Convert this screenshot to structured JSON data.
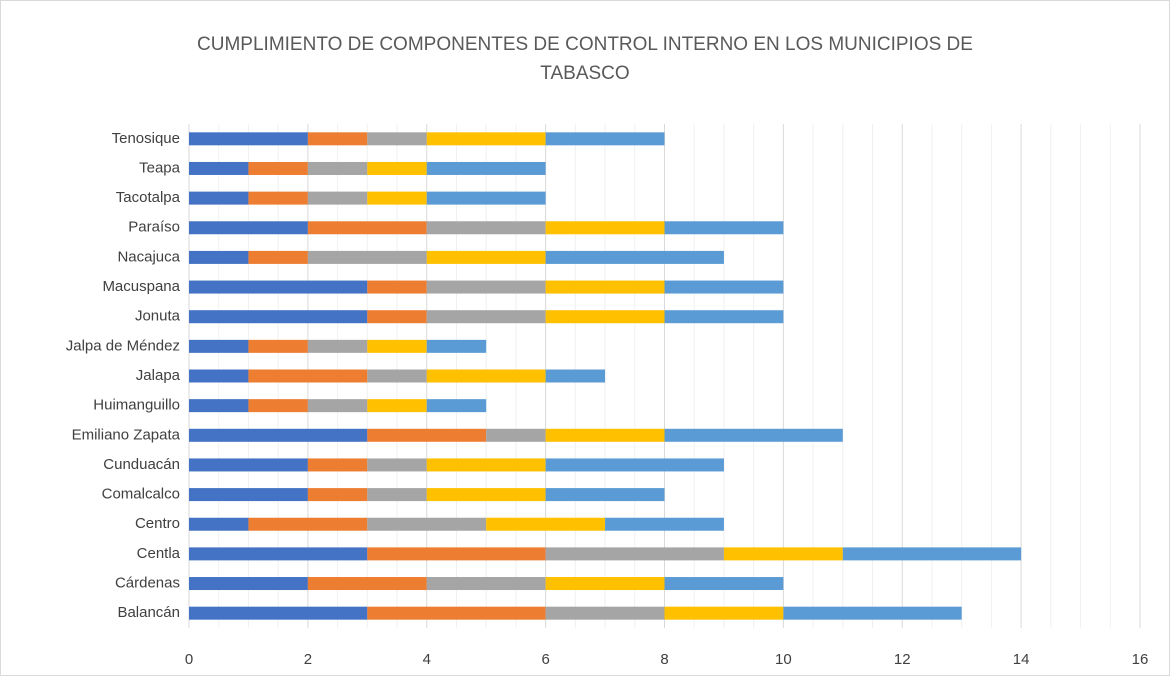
{
  "chart_data": {
    "type": "stacked_barh",
    "title": "CUMPLIMIENTO DE COMPONENTES DE CONTROL INTERNO EN LOS MUNICIPIOS DE TABASCO",
    "categories": [
      "Balancán",
      "Cárdenas",
      "Centla",
      "Centro",
      "Comalcalco",
      "Cunduacán",
      "Emiliano Zapata",
      "Huimanguillo",
      "Jalapa",
      "Jalpa de Méndez",
      "Jonuta",
      "Macuspana",
      "Nacajuca",
      "Paraíso",
      "Tacotalpa",
      "Teapa",
      "Tenosique"
    ],
    "series": [
      {
        "color": "#4472c4",
        "values": [
          3,
          2,
          3,
          1,
          2,
          2,
          3,
          1,
          1,
          1,
          3,
          3,
          1,
          2,
          1,
          1,
          2
        ]
      },
      {
        "color": "#ed7d31",
        "values": [
          3,
          2,
          3,
          2,
          1,
          1,
          2,
          1,
          2,
          1,
          1,
          1,
          1,
          2,
          1,
          1,
          1
        ]
      },
      {
        "color": "#a5a5a5",
        "values": [
          2,
          2,
          3,
          2,
          1,
          1,
          1,
          1,
          1,
          1,
          2,
          2,
          2,
          2,
          1,
          1,
          1
        ]
      },
      {
        "color": "#ffc000",
        "values": [
          2,
          2,
          2,
          2,
          2,
          2,
          2,
          1,
          2,
          1,
          2,
          2,
          2,
          2,
          1,
          1,
          2
        ]
      },
      {
        "color": "#5b9bd5",
        "values": [
          3,
          2,
          3,
          2,
          2,
          3,
          3,
          1,
          1,
          1,
          2,
          2,
          3,
          2,
          2,
          2,
          2
        ]
      }
    ],
    "xlim": [
      0,
      16
    ],
    "xticks": [
      0,
      2,
      4,
      6,
      8,
      10,
      12,
      14,
      16
    ],
    "grid": true,
    "minor_grid": true
  }
}
